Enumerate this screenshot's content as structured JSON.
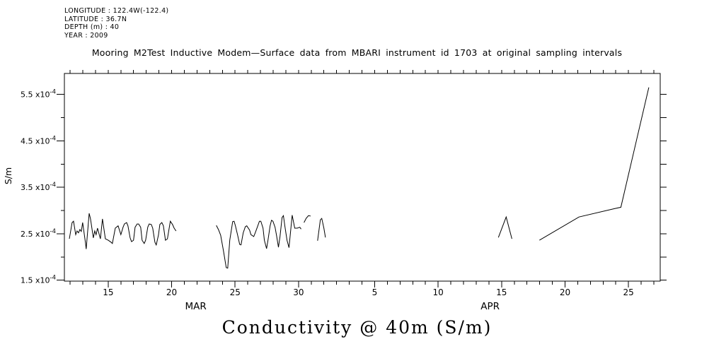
{
  "info_block": {
    "lines": [
      "LONGITUDE : 122.4W(-122.4)",
      "LATITUDE : 36.7N",
      "DEPTH (m) : 40",
      "YEAR : 2009"
    ]
  },
  "title": "Mooring M2Test Inductive Modem—Surface data from MBARI instrument id 1703 at original sampling intervals",
  "footer_title": "Conductivity @ 40m (S/m)",
  "chart_data": {
    "type": "line",
    "title": "Mooring M2Test Inductive Modem—Surface data from MBARI instrument id 1703 at original sampling intervals",
    "xlabel": "Conductivity @ 40m (S/m)",
    "ylabel": "S/m",
    "line_color": "#000000",
    "background": "#ffffff",
    "grid": false,
    "legend": "none",
    "values_unit_note": "y values and ranges are in units of 1e-4 S/m; x is day-of-March (April day = 31 + d)",
    "x_axis": {
      "range_days": [
        11.55,
        58.5
      ],
      "minor_ticks": {
        "start_day": 12,
        "end_day": 58,
        "step": 1
      },
      "major_ticks": [
        {
          "day": 15,
          "label": "15"
        },
        {
          "day": 20,
          "label": "20"
        },
        {
          "day": 25,
          "label": "25"
        },
        {
          "day": 30,
          "label": "30"
        },
        {
          "day": 36,
          "label": "5"
        },
        {
          "day": 41,
          "label": "10"
        },
        {
          "day": 46,
          "label": "15"
        },
        {
          "day": 51,
          "label": "20"
        },
        {
          "day": 56,
          "label": "25"
        }
      ],
      "month_labels": [
        {
          "label": "MAR",
          "day": 21.9
        },
        {
          "label": "APR",
          "day": 45.1
        }
      ]
    },
    "y_axis": {
      "range": [
        1.48,
        5.95
      ],
      "minor_tick_values": [
        2.0,
        3.0,
        4.0,
        5.0
      ],
      "right_edge_ticks": {
        "start": 1.5,
        "end": 5.5,
        "step": 0.5
      },
      "major_ticks": [
        {
          "value": 1.5,
          "label": "1.5 x10",
          "sup": "-4"
        },
        {
          "value": 2.5,
          "label": "2.5 x10",
          "sup": "-4"
        },
        {
          "value": 3.5,
          "label": "3.5 x10",
          "sup": "-4"
        },
        {
          "value": 4.5,
          "label": "4.5 x10",
          "sup": "-4"
        },
        {
          "value": 5.5,
          "label": "5.5 x10",
          "sup": "-4"
        }
      ]
    },
    "series_note": "single conductivity trace broken into segments by data gaps",
    "series": [
      {
        "name": "segment-mar-12-20",
        "points": [
          [
            11.94,
            2.39
          ],
          [
            12.16,
            2.74
          ],
          [
            12.27,
            2.77
          ],
          [
            12.44,
            2.48
          ],
          [
            12.55,
            2.56
          ],
          [
            12.66,
            2.52
          ],
          [
            12.77,
            2.59
          ],
          [
            12.88,
            2.55
          ],
          [
            12.99,
            2.74
          ],
          [
            13.22,
            2.29
          ],
          [
            13.27,
            2.17
          ],
          [
            13.5,
            2.94
          ],
          [
            13.61,
            2.82
          ],
          [
            13.83,
            2.41
          ],
          [
            13.94,
            2.56
          ],
          [
            14.05,
            2.48
          ],
          [
            14.16,
            2.62
          ],
          [
            14.39,
            2.39
          ],
          [
            14.55,
            2.82
          ],
          [
            14.78,
            2.39
          ],
          [
            15.0,
            2.36
          ],
          [
            15.22,
            2.32
          ],
          [
            15.33,
            2.29
          ],
          [
            15.56,
            2.62
          ],
          [
            15.78,
            2.67
          ],
          [
            16.0,
            2.48
          ],
          [
            16.17,
            2.64
          ],
          [
            16.28,
            2.71
          ],
          [
            16.45,
            2.74
          ],
          [
            16.56,
            2.67
          ],
          [
            16.73,
            2.41
          ],
          [
            16.84,
            2.33
          ],
          [
            17.0,
            2.36
          ],
          [
            17.12,
            2.64
          ],
          [
            17.28,
            2.71
          ],
          [
            17.4,
            2.71
          ],
          [
            17.56,
            2.64
          ],
          [
            17.67,
            2.36
          ],
          [
            17.84,
            2.29
          ],
          [
            17.95,
            2.36
          ],
          [
            18.12,
            2.64
          ],
          [
            18.23,
            2.71
          ],
          [
            18.4,
            2.7
          ],
          [
            18.51,
            2.62
          ],
          [
            18.68,
            2.32
          ],
          [
            18.79,
            2.26
          ],
          [
            18.96,
            2.47
          ],
          [
            19.07,
            2.7
          ],
          [
            19.23,
            2.74
          ],
          [
            19.35,
            2.67
          ],
          [
            19.51,
            2.36
          ],
          [
            19.67,
            2.39
          ],
          [
            19.9,
            2.77
          ],
          [
            20.07,
            2.7
          ],
          [
            20.2,
            2.62
          ],
          [
            20.35,
            2.56
          ]
        ]
      },
      {
        "name": "segment-mar-23-30",
        "points": [
          [
            23.52,
            2.68
          ],
          [
            23.69,
            2.59
          ],
          [
            23.86,
            2.47
          ],
          [
            24.08,
            2.14
          ],
          [
            24.3,
            1.77
          ],
          [
            24.42,
            1.76
          ],
          [
            24.58,
            2.36
          ],
          [
            24.81,
            2.76
          ],
          [
            24.92,
            2.77
          ],
          [
            25.03,
            2.67
          ],
          [
            25.2,
            2.47
          ],
          [
            25.36,
            2.27
          ],
          [
            25.47,
            2.26
          ],
          [
            25.64,
            2.52
          ],
          [
            25.81,
            2.65
          ],
          [
            25.92,
            2.67
          ],
          [
            26.14,
            2.58
          ],
          [
            26.25,
            2.48
          ],
          [
            26.47,
            2.44
          ],
          [
            26.59,
            2.52
          ],
          [
            26.75,
            2.64
          ],
          [
            26.92,
            2.77
          ],
          [
            27.03,
            2.77
          ],
          [
            27.2,
            2.62
          ],
          [
            27.31,
            2.36
          ],
          [
            27.48,
            2.18
          ],
          [
            27.59,
            2.36
          ],
          [
            27.76,
            2.67
          ],
          [
            27.87,
            2.79
          ],
          [
            27.98,
            2.77
          ],
          [
            28.15,
            2.64
          ],
          [
            28.26,
            2.47
          ],
          [
            28.42,
            2.21
          ],
          [
            28.54,
            2.44
          ],
          [
            28.7,
            2.85
          ],
          [
            28.81,
            2.89
          ],
          [
            28.92,
            2.67
          ],
          [
            29.09,
            2.36
          ],
          [
            29.25,
            2.2
          ],
          [
            29.5,
            2.9
          ],
          [
            29.7,
            2.62
          ],
          [
            29.9,
            2.62
          ],
          [
            30.1,
            2.64
          ],
          [
            30.2,
            2.6
          ]
        ]
      },
      {
        "name": "segment-mar-30-arc",
        "points": [
          [
            30.43,
            2.74
          ],
          [
            30.6,
            2.83
          ],
          [
            30.78,
            2.89
          ],
          [
            30.95,
            2.88
          ]
        ]
      },
      {
        "name": "segment-mar-31-peak",
        "points": [
          [
            31.5,
            2.35
          ],
          [
            31.72,
            2.8
          ],
          [
            31.83,
            2.83
          ],
          [
            32.0,
            2.62
          ],
          [
            32.12,
            2.42
          ]
        ]
      },
      {
        "name": "segment-apr-15-spike",
        "points": [
          [
            45.75,
            2.42
          ],
          [
            46.36,
            2.86
          ],
          [
            46.81,
            2.39
          ]
        ]
      },
      {
        "name": "segment-apr-18-27-rise",
        "points": [
          [
            48.98,
            2.36
          ],
          [
            52.1,
            2.86
          ],
          [
            54.9,
            3.04
          ],
          [
            55.4,
            3.07
          ],
          [
            57.6,
            5.65
          ]
        ]
      }
    ]
  }
}
